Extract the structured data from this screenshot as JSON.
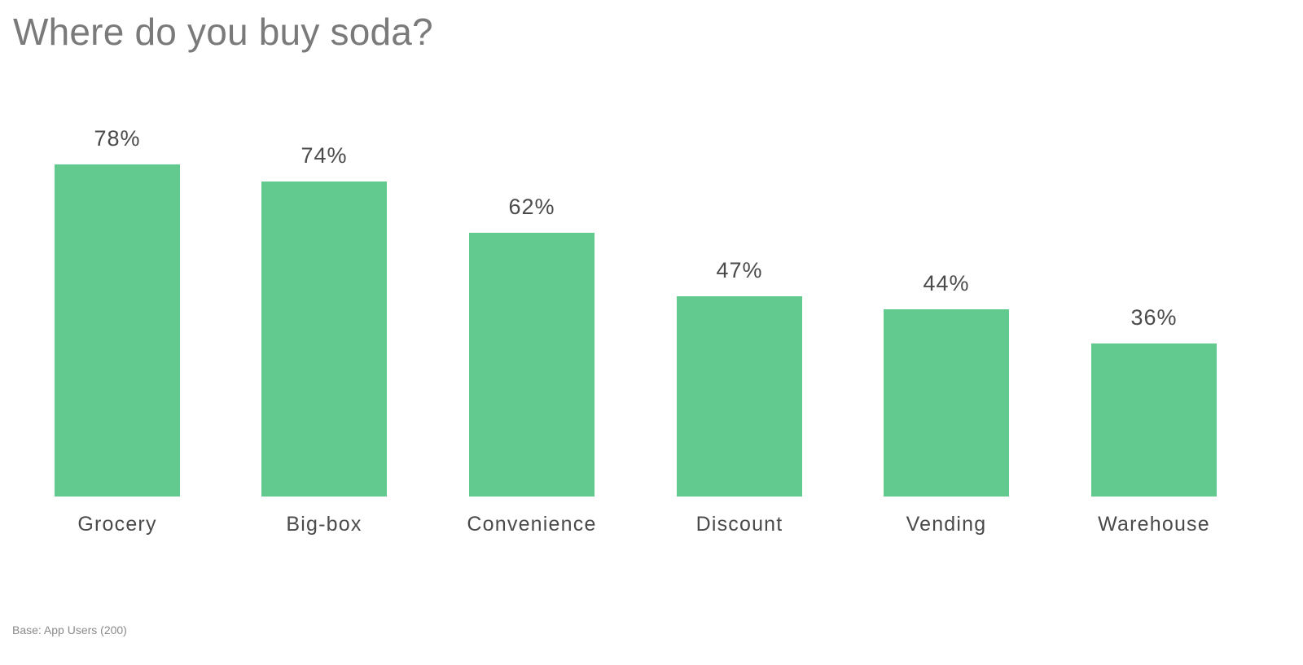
{
  "title": "Where do you buy soda?",
  "footnote": "Base: App Users (200)",
  "colors": {
    "bar": "#62c98f",
    "title": "#7a7a7a",
    "label": "#4a4a4a"
  },
  "bars": [
    {
      "category": "Grocery",
      "value": 78,
      "label": "78%"
    },
    {
      "category": "Big-box",
      "value": 74,
      "label": "74%"
    },
    {
      "category": "Convenience",
      "value": 62,
      "label": "62%"
    },
    {
      "category": "Discount",
      "value": 47,
      "label": "47%"
    },
    {
      "category": "Vending",
      "value": 44,
      "label": "44%"
    },
    {
      "category": "Warehouse",
      "value": 36,
      "label": "36%"
    }
  ],
  "chart_data": {
    "type": "bar",
    "title": "Where do you buy soda?",
    "categories": [
      "Grocery",
      "Big-box",
      "Convenience",
      "Discount",
      "Vending",
      "Warehouse"
    ],
    "values": [
      78,
      74,
      62,
      47,
      44,
      36
    ],
    "value_labels": [
      "78%",
      "74%",
      "62%",
      "47%",
      "44%",
      "36%"
    ],
    "xlabel": "",
    "ylabel": "",
    "ylim": [
      0,
      100
    ],
    "unit": "%",
    "grid": false,
    "axes_visible": false,
    "legend": null,
    "annotations": [
      "Base: App Users (200)"
    ]
  }
}
